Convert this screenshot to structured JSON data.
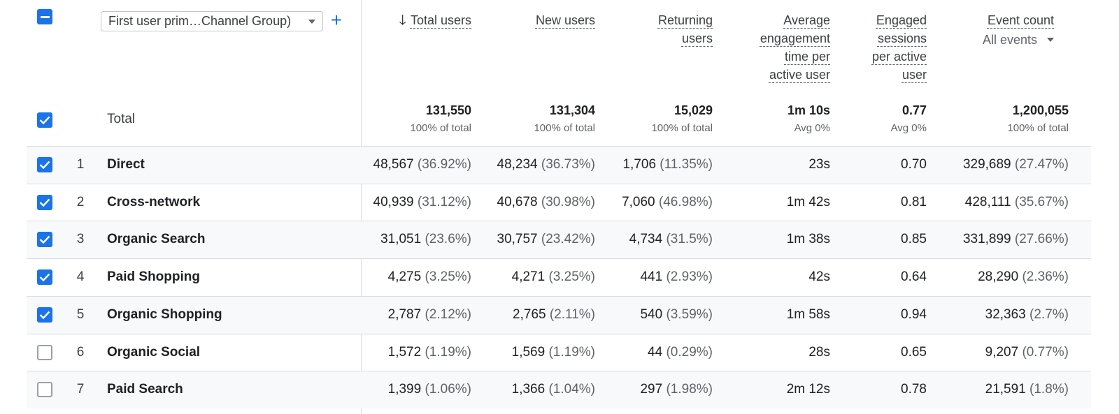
{
  "header": {
    "dimension_label": "First user prim…Channel Group)",
    "columns": {
      "total_users": [
        "Total users"
      ],
      "new_users": [
        "New users"
      ],
      "returning_users": [
        "Returning",
        "users"
      ],
      "avg_engagement": [
        "Average",
        "engagement",
        "time per",
        "active user"
      ],
      "engaged_sessions": [
        "Engaged",
        "sessions",
        "per active",
        "user"
      ],
      "event_count": [
        "Event count"
      ]
    },
    "event_selector": "All events"
  },
  "totals": {
    "label": "Total",
    "total_users": {
      "value": "131,550",
      "sub": "100% of total"
    },
    "new_users": {
      "value": "131,304",
      "sub": "100% of total"
    },
    "returning_users": {
      "value": "15,029",
      "sub": "100% of total"
    },
    "avg_engagement": {
      "value": "1m 10s",
      "sub": "Avg 0%"
    },
    "engaged_sessions": {
      "value": "0.77",
      "sub": "Avg 0%"
    },
    "event_count": {
      "value": "1,200,055",
      "sub": "100% of total"
    }
  },
  "rows": [
    {
      "index": "1",
      "checked": true,
      "name": "Direct",
      "total_users": "48,567",
      "total_users_pct": "(36.92%)",
      "new_users": "48,234",
      "new_users_pct": "(36.73%)",
      "returning_users": "1,706",
      "returning_users_pct": "(11.35%)",
      "avg_engagement": "23s",
      "engaged_sessions": "0.70",
      "event_count": "329,689",
      "event_count_pct": "(27.47%)"
    },
    {
      "index": "2",
      "checked": true,
      "name": "Cross-network",
      "total_users": "40,939",
      "total_users_pct": "(31.12%)",
      "new_users": "40,678",
      "new_users_pct": "(30.98%)",
      "returning_users": "7,060",
      "returning_users_pct": "(46.98%)",
      "avg_engagement": "1m 42s",
      "engaged_sessions": "0.81",
      "event_count": "428,111",
      "event_count_pct": "(35.67%)"
    },
    {
      "index": "3",
      "checked": true,
      "name": "Organic Search",
      "total_users": "31,051",
      "total_users_pct": "(23.6%)",
      "new_users": "30,757",
      "new_users_pct": "(23.42%)",
      "returning_users": "4,734",
      "returning_users_pct": "(31.5%)",
      "avg_engagement": "1m 38s",
      "engaged_sessions": "0.85",
      "event_count": "331,899",
      "event_count_pct": "(27.66%)"
    },
    {
      "index": "4",
      "checked": true,
      "name": "Paid Shopping",
      "total_users": "4,275",
      "total_users_pct": "(3.25%)",
      "new_users": "4,271",
      "new_users_pct": "(3.25%)",
      "returning_users": "441",
      "returning_users_pct": "(2.93%)",
      "avg_engagement": "42s",
      "engaged_sessions": "0.64",
      "event_count": "28,290",
      "event_count_pct": "(2.36%)"
    },
    {
      "index": "5",
      "checked": true,
      "name": "Organic Shopping",
      "total_users": "2,787",
      "total_users_pct": "(2.12%)",
      "new_users": "2,765",
      "new_users_pct": "(2.11%)",
      "returning_users": "540",
      "returning_users_pct": "(3.59%)",
      "avg_engagement": "1m 58s",
      "engaged_sessions": "0.94",
      "event_count": "32,363",
      "event_count_pct": "(2.7%)"
    },
    {
      "index": "6",
      "checked": false,
      "name": "Organic Social",
      "total_users": "1,572",
      "total_users_pct": "(1.19%)",
      "new_users": "1,569",
      "new_users_pct": "(1.19%)",
      "returning_users": "44",
      "returning_users_pct": "(0.29%)",
      "avg_engagement": "28s",
      "engaged_sessions": "0.65",
      "event_count": "9,207",
      "event_count_pct": "(0.77%)"
    },
    {
      "index": "7",
      "checked": false,
      "name": "Paid Search",
      "total_users": "1,399",
      "total_users_pct": "(1.06%)",
      "new_users": "1,366",
      "new_users_pct": "(1.04%)",
      "returning_users": "297",
      "returning_users_pct": "(1.98%)",
      "avg_engagement": "2m 12s",
      "engaged_sessions": "0.78",
      "event_count": "21,591",
      "event_count_pct": "(1.8%)"
    }
  ],
  "colors": {
    "accent": "#1a73e8",
    "border": "#dadce0",
    "muted": "#5f6368"
  }
}
